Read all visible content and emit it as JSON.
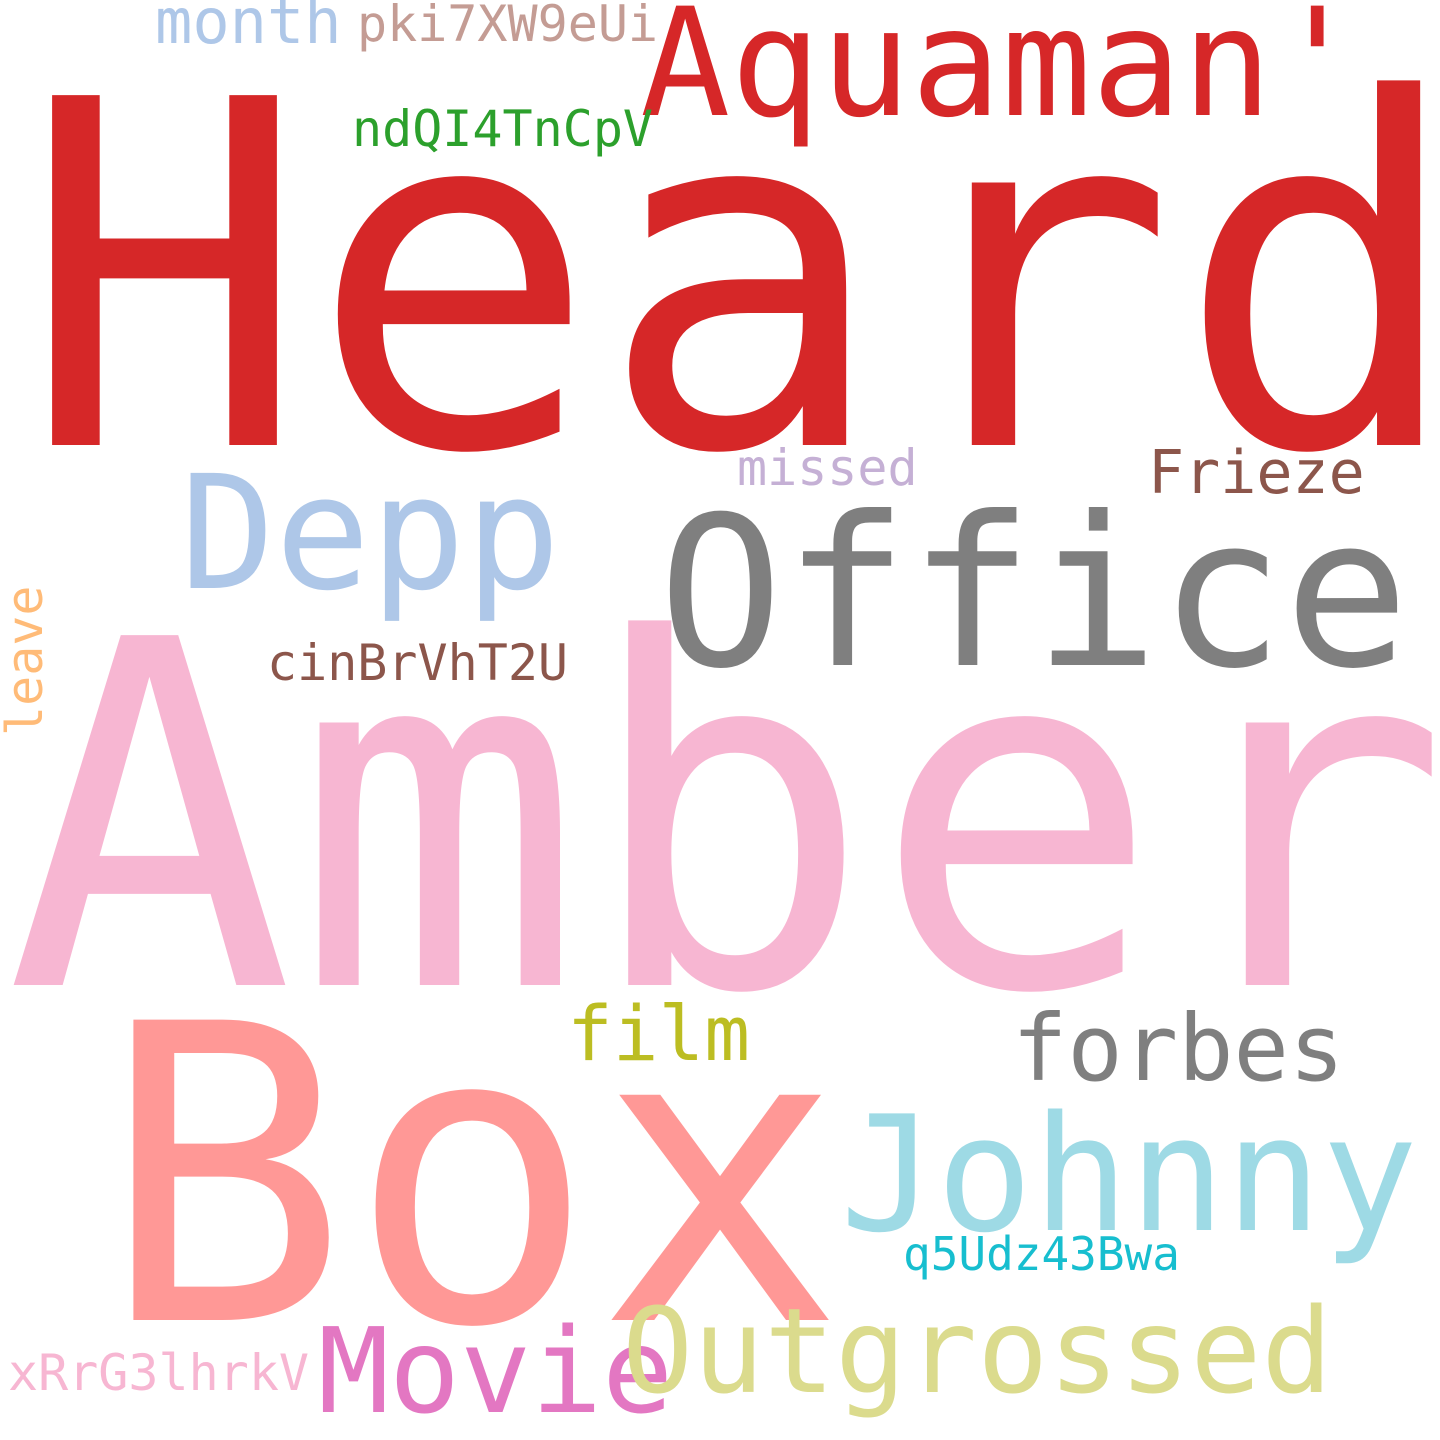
{
  "words": [
    {
      "id": "heard",
      "text": "Heard",
      "color": "#d62728"
    },
    {
      "id": "aquaman",
      "text": "Aquaman'",
      "color": "#d62728"
    },
    {
      "id": "month",
      "text": "month",
      "color": "#aec7e8"
    },
    {
      "id": "pki7",
      "text": "pki7XW9eUi",
      "color": "#c49c94"
    },
    {
      "id": "ndqi",
      "text": "ndQI4TnCpV",
      "color": "#2ca02c"
    },
    {
      "id": "missed",
      "text": "missed",
      "color": "#c5b0d5"
    },
    {
      "id": "frieze",
      "text": "Frieze",
      "color": "#8c564b"
    },
    {
      "id": "depp",
      "text": "Depp",
      "color": "#aec7e8"
    },
    {
      "id": "office",
      "text": "Office",
      "color": "#7f7f7f"
    },
    {
      "id": "cinbr",
      "text": "cinBrVhT2U",
      "color": "#8c564b"
    },
    {
      "id": "leave",
      "text": "leave",
      "color": "#ffbb78"
    },
    {
      "id": "amber",
      "text": "Amber",
      "color": "#f7b6d2"
    },
    {
      "id": "film",
      "text": "film",
      "color": "#bcbd22"
    },
    {
      "id": "forbes",
      "text": "forbes",
      "color": "#7f7f7f"
    },
    {
      "id": "box",
      "text": "Box",
      "color": "#ff9896"
    },
    {
      "id": "johnny",
      "text": "Johnny",
      "color": "#9edae5"
    },
    {
      "id": "q5udz",
      "text": "q5Udz43Bwa",
      "color": "#17becf"
    },
    {
      "id": "xrrg",
      "text": "xRrG3lhrkV",
      "color": "#f7b6d2"
    },
    {
      "id": "movie",
      "text": "Movie",
      "color": "#e377c2"
    },
    {
      "id": "outgrossed",
      "text": "Outgrossed",
      "color": "#dbdb8d"
    }
  ]
}
